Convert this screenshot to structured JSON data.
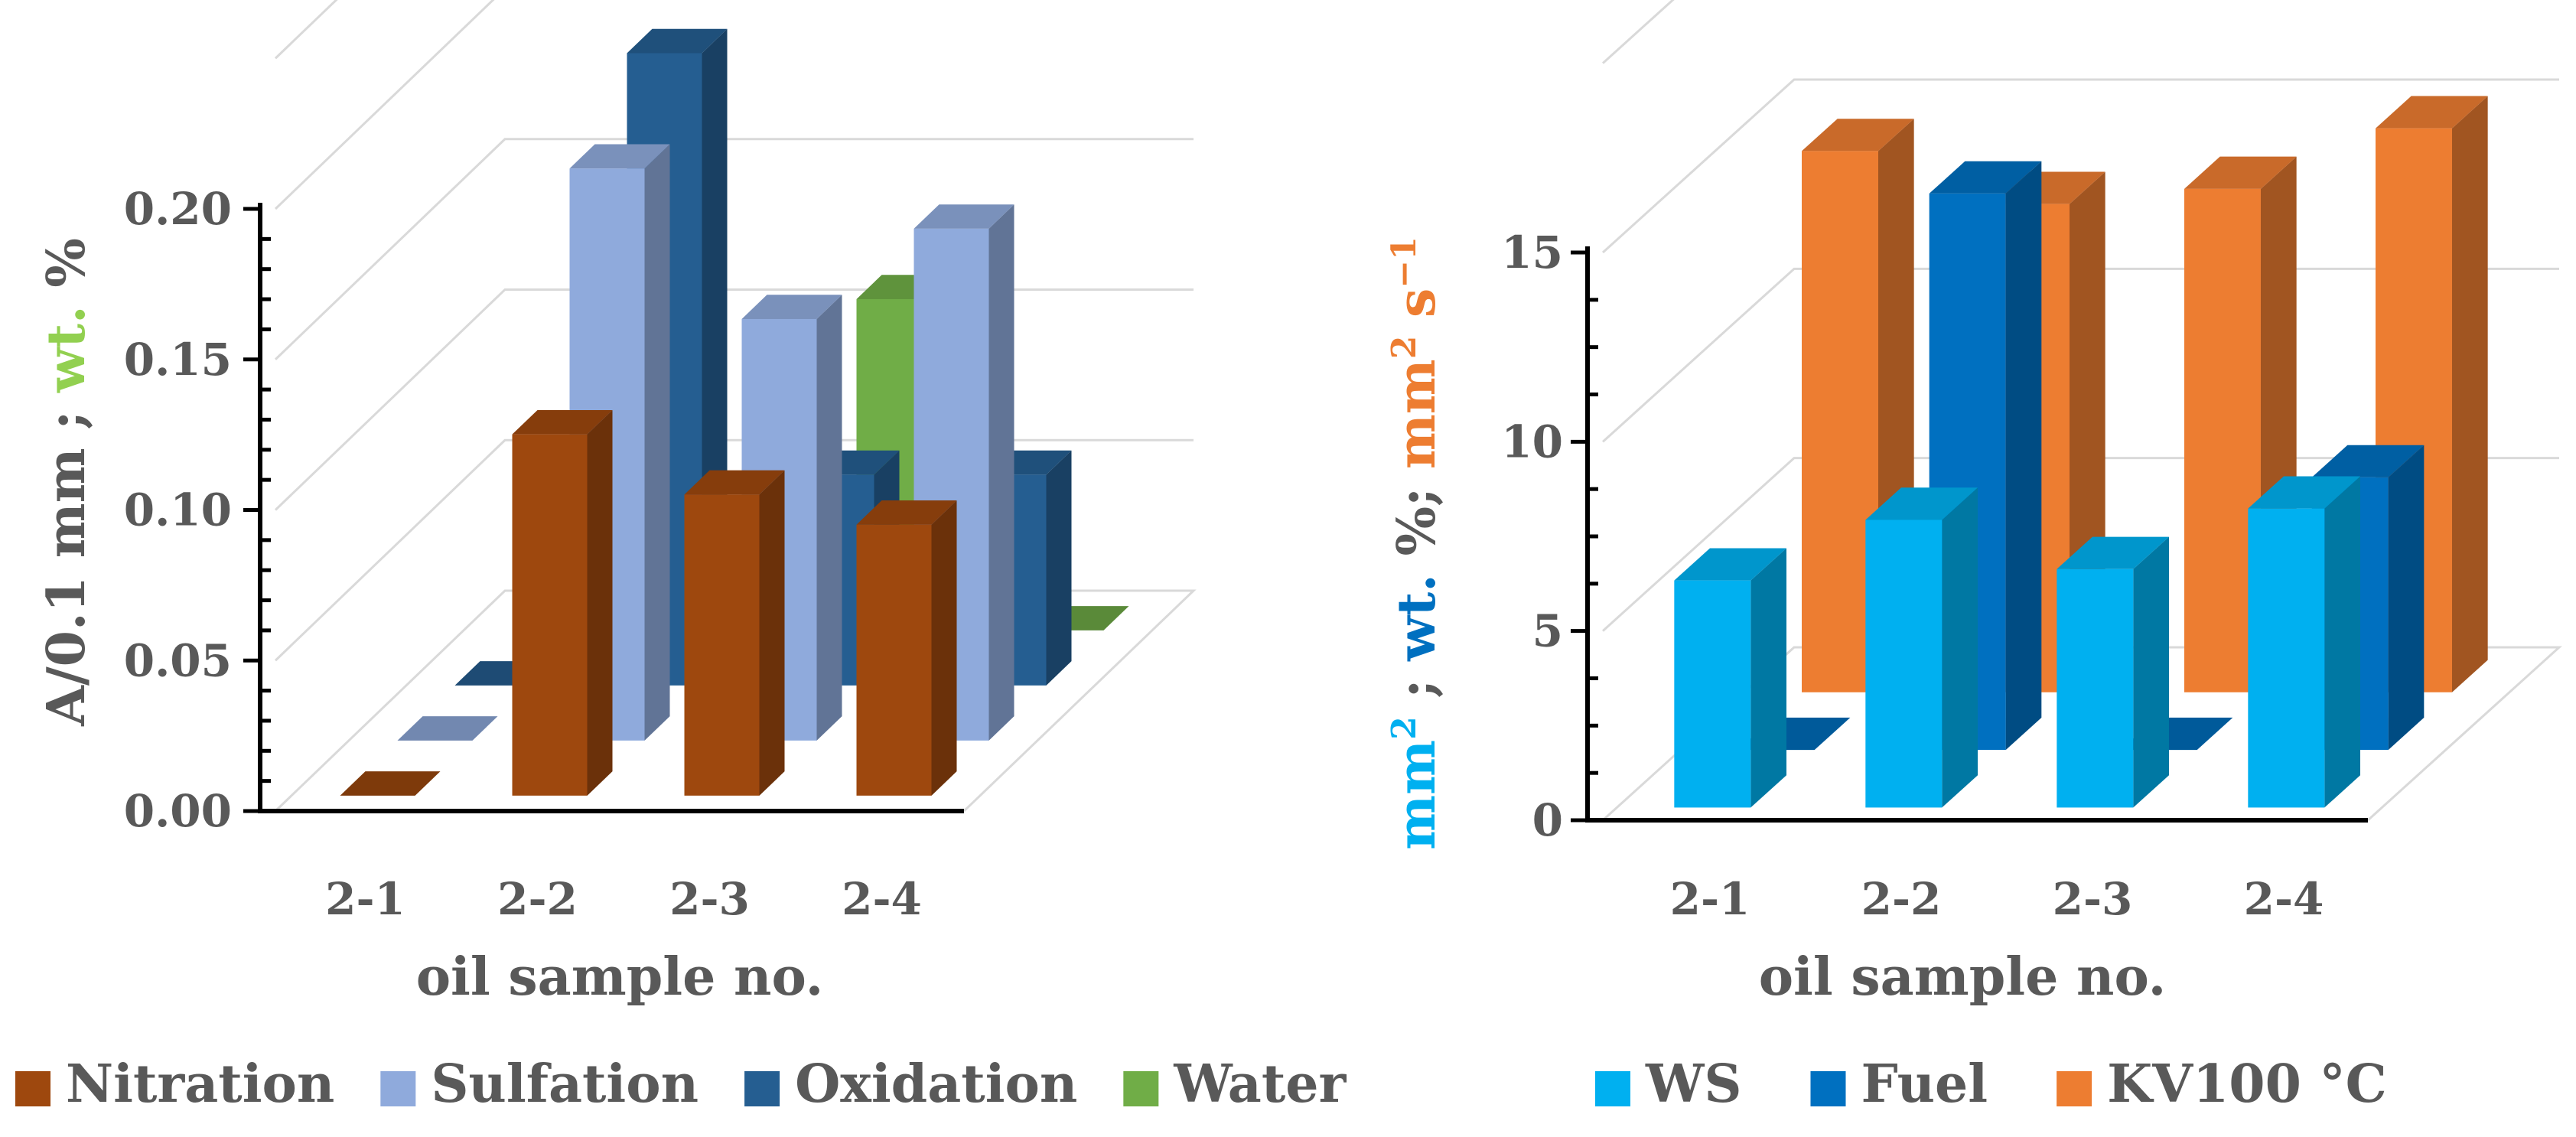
{
  "chart_data": [
    {
      "type": "bar3d",
      "categories": [
        "2-1",
        "2-2",
        "2-3",
        "2-4"
      ],
      "xlabel": "oil sample no.",
      "ylabel_parts": [
        {
          "text": "A/0.1 mm ; ",
          "color": "#595959"
        },
        {
          "text": "wt.",
          "color": "#92d050"
        },
        {
          "text": " %",
          "color": "#595959"
        }
      ],
      "ylim": [
        0,
        0.2
      ],
      "yticks": [
        "0.00",
        "0.05",
        "0.10",
        "0.15",
        "0.20"
      ],
      "series": [
        {
          "name": "Nitration",
          "color": "#9e480e",
          "values": [
            0.0,
            0.12,
            0.1,
            0.09
          ]
        },
        {
          "name": "Sulfation",
          "color": "#8faadc",
          "values": [
            0.0,
            0.19,
            0.14,
            0.17
          ]
        },
        {
          "name": "Oxidation",
          "color": "#255e91",
          "values": [
            0.0,
            0.21,
            0.07,
            0.07
          ]
        },
        {
          "name": "Water",
          "color": "#70ad47",
          "values": [
            0.0,
            0.0,
            0.11,
            0.0
          ]
        }
      ]
    },
    {
      "type": "bar3d",
      "categories": [
        "2-1",
        "2-2",
        "2-3",
        "2-4"
      ],
      "xlabel": "oil sample no.",
      "ylabel_parts": [
        {
          "text": "mm",
          "color": "#00b0f0"
        },
        {
          "text": "2",
          "color": "#00b0f0",
          "sup": true
        },
        {
          "text": " ; ",
          "color": "#595959"
        },
        {
          "text": "wt.",
          "color": "#0070c0"
        },
        {
          "text": " %",
          "color": "#595959"
        },
        {
          "text": "; ",
          "color": "#595959"
        },
        {
          "text": "mm",
          "color": "#ed7d31"
        },
        {
          "text": "2",
          "color": "#ed7d31",
          "sup": true
        },
        {
          "text": " s",
          "color": "#ed7d31"
        },
        {
          "text": "−1",
          "color": "#ed7d31",
          "sup": true
        }
      ],
      "ylim": [
        0,
        15
      ],
      "yticks": [
        "0",
        "5",
        "10",
        "15"
      ],
      "series": [
        {
          "name": "WS",
          "color": "#00b0f0",
          "values": [
            6.0,
            7.6,
            6.3,
            7.9
          ]
        },
        {
          "name": "Fuel",
          "color": "#0070c0",
          "values": [
            0.0,
            14.7,
            0.0,
            7.2
          ]
        },
        {
          "name": "KV100 °C",
          "color": "#ed7d31",
          "values": [
            14.3,
            12.9,
            13.3,
            14.9
          ]
        }
      ]
    }
  ]
}
